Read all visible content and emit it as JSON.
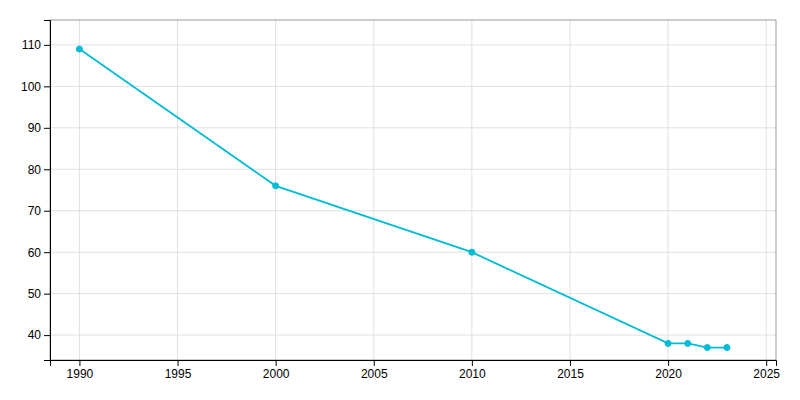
{
  "chart_data": {
    "type": "line",
    "x": [
      1990,
      2000,
      2010,
      2020,
      2021,
      2022,
      2023
    ],
    "values": [
      109,
      76,
      60,
      38,
      38,
      37,
      37
    ],
    "color": "#00BCD4",
    "marker": "circle",
    "xlim": [
      1988.5,
      2025.5
    ],
    "ylim": [
      34,
      116
    ],
    "xticks": [
      1990,
      1995,
      2000,
      2005,
      2010,
      2015,
      2020,
      2025
    ],
    "yticks": [
      40,
      50,
      60,
      70,
      80,
      90,
      100,
      110
    ],
    "grid": true
  }
}
